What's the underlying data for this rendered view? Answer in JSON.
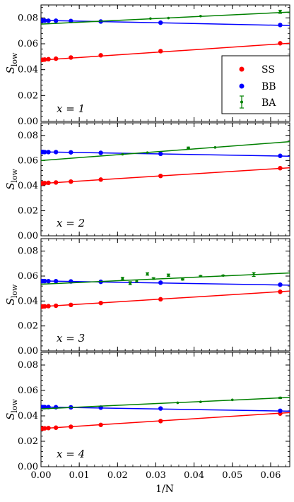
{
  "chart_data": {
    "type": "scatter",
    "xlabel": "1/N",
    "ylabel": "S_low",
    "ylabel_main": "S",
    "ylabel_sub": "low",
    "xlim": [
      0,
      0.065
    ],
    "ylim": [
      0,
      0.09
    ],
    "xticks": [
      "0.00",
      "0.01",
      "0.02",
      "0.03",
      "0.04",
      "0.05",
      "0.06"
    ],
    "yticks": [
      "0.00",
      "0.02",
      "0.04",
      "0.06",
      "0.08"
    ],
    "legend": {
      "placement": "right",
      "entries": [
        "SS",
        "BB",
        "BA"
      ]
    },
    "colors": {
      "SS": "#ff0000",
      "BB": "#0000ff",
      "BA": "#008000"
    },
    "panels": [
      {
        "label": "x = 1",
        "series": [
          {
            "name": "SS",
            "x": [
              0.000244,
              0.000488,
              0.000977,
              0.001953,
              0.003906,
              0.007813,
              0.015625,
              0.03125,
              0.0625
            ],
            "y": [
              0.0475,
              0.0477,
              0.0478,
              0.0481,
              0.0485,
              0.0494,
              0.0511,
              0.0543,
              0.0604
            ],
            "fit": [
              0.0474,
              0.0604
            ]
          },
          {
            "name": "BB",
            "x": [
              0.000244,
              0.000488,
              0.000977,
              0.001953,
              0.003906,
              0.007813,
              0.015625,
              0.03125,
              0.0625
            ],
            "y": [
              0.078,
              0.0779,
              0.0779,
              0.0778,
              0.0778,
              0.0776,
              0.0772,
              0.0763,
              0.0745
            ],
            "fit": [
              0.0781,
              0.0741
            ]
          },
          {
            "name": "BA",
            "x": [
              0.0286,
              0.0333,
              0.0417,
              0.0625
            ],
            "y": [
              0.0795,
              0.0799,
              0.0814,
              0.0847
            ],
            "err": [
              0,
              0,
              0,
              0.0012
            ],
            "fit": [
              0.0752,
              0.0845
            ]
          }
        ]
      },
      {
        "label": "x = 2",
        "series": [
          {
            "name": "SS",
            "x": [
              0.000244,
              0.000488,
              0.000977,
              0.001953,
              0.003906,
              0.007813,
              0.015625,
              0.03125,
              0.0625
            ],
            "y": [
              0.0418,
              0.0419,
              0.042,
              0.0422,
              0.0425,
              0.0432,
              0.0448,
              0.0477,
              0.0539
            ],
            "fit": [
              0.0417,
              0.0542
            ]
          },
          {
            "name": "BB",
            "x": [
              0.000244,
              0.000488,
              0.000977,
              0.001953,
              0.003906,
              0.007813,
              0.015625,
              0.03125,
              0.0625
            ],
            "y": [
              0.0668,
              0.0668,
              0.0667,
              0.0667,
              0.0667,
              0.0665,
              0.0661,
              0.0653,
              0.0637
            ],
            "fit": [
              0.0669,
              0.0634
            ]
          },
          {
            "name": "BA",
            "x": [
              0.0213,
              0.0278,
              0.0385,
              0.0455
            ],
            "y": [
              0.065,
              0.0663,
              0.0701,
              0.0704
            ],
            "err": [
              0,
              0,
              0.0006,
              0
            ],
            "fit": [
              0.06,
              0.075
            ]
          }
        ]
      },
      {
        "label": "x = 3",
        "series": [
          {
            "name": "SS",
            "x": [
              0.000244,
              0.000488,
              0.000977,
              0.001953,
              0.003906,
              0.007813,
              0.015625,
              0.03125,
              0.0625
            ],
            "y": [
              0.0355,
              0.0356,
              0.0357,
              0.0359,
              0.0362,
              0.0369,
              0.0384,
              0.0414,
              0.0474
            ],
            "fit": [
              0.0355,
              0.048
            ]
          },
          {
            "name": "BB",
            "x": [
              0.000244,
              0.000488,
              0.000977,
              0.001953,
              0.003906,
              0.007813,
              0.015625,
              0.03125,
              0.0625
            ],
            "y": [
              0.056,
              0.056,
              0.056,
              0.0559,
              0.0559,
              0.0557,
              0.0554,
              0.0547,
              0.0531
            ],
            "fit": [
              0.0561,
              0.0527
            ]
          },
          {
            "name": "BA",
            "x": [
              0.0213,
              0.0233,
              0.025,
              0.0278,
              0.0294,
              0.0333,
              0.037,
              0.0417,
              0.0476,
              0.0556
            ],
            "y": [
              0.058,
              0.0543,
              0.056,
              0.0617,
              0.058,
              0.0607,
              0.0573,
              0.06,
              0.0604,
              0.0613
            ],
            "err": [
              0.001,
              0.0012,
              0.0008,
              0.001,
              0.0007,
              0.0009,
              0.0005,
              0.0004,
              0.0003,
              0.0016
            ],
            "fit": [
              0.0535,
              0.0625
            ]
          }
        ]
      },
      {
        "label": "x = 4",
        "series": [
          {
            "name": "SS",
            "x": [
              0.000244,
              0.000488,
              0.000977,
              0.001953,
              0.003906,
              0.007813,
              0.015625,
              0.03125,
              0.0625
            ],
            "y": [
              0.03,
              0.0301,
              0.0302,
              0.0304,
              0.0307,
              0.0314,
              0.0329,
              0.0359,
              0.0418
            ],
            "fit": [
              0.03,
              0.0426
            ]
          },
          {
            "name": "BB",
            "x": [
              0.000244,
              0.000488,
              0.000977,
              0.001953,
              0.003906,
              0.007813,
              0.015625,
              0.03125,
              0.0625
            ],
            "y": [
              0.0469,
              0.0469,
              0.0469,
              0.0469,
              0.0468,
              0.0467,
              0.0465,
              0.0458,
              0.044
            ],
            "fit": [
              0.047,
              0.0437
            ]
          },
          {
            "name": "BA",
            "x": [
              0.0357,
              0.0417,
              0.05,
              0.0625
            ],
            "y": [
              0.0503,
              0.051,
              0.0526,
              0.0542
            ],
            "err": [
              0,
              0,
              0,
              0.0005
            ],
            "fit": [
              0.0455,
              0.0545
            ]
          }
        ]
      }
    ]
  }
}
